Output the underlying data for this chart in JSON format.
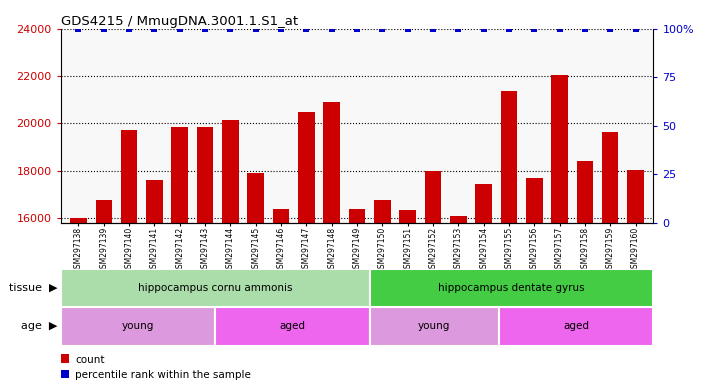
{
  "title": "GDS4215 / MmugDNA.3001.1.S1_at",
  "samples": [
    "GSM297138",
    "GSM297139",
    "GSM297140",
    "GSM297141",
    "GSM297142",
    "GSM297143",
    "GSM297144",
    "GSM297145",
    "GSM297146",
    "GSM297147",
    "GSM297148",
    "GSM297149",
    "GSM297150",
    "GSM297151",
    "GSM297152",
    "GSM297153",
    "GSM297154",
    "GSM297155",
    "GSM297156",
    "GSM297157",
    "GSM297158",
    "GSM297159",
    "GSM297160"
  ],
  "counts": [
    16000,
    16750,
    19700,
    17600,
    19850,
    19850,
    20150,
    17900,
    16400,
    20500,
    20900,
    16400,
    16750,
    16350,
    18000,
    16100,
    17450,
    21350,
    17700,
    22050,
    18400,
    19650,
    18050
  ],
  "percentile": [
    100,
    100,
    100,
    100,
    100,
    100,
    100,
    100,
    100,
    100,
    100,
    100,
    100,
    100,
    100,
    100,
    100,
    100,
    100,
    100,
    100,
    100,
    100
  ],
  "bar_color": "#cc0000",
  "percentile_color": "#0000cc",
  "ylim_left": [
    15800,
    24000
  ],
  "ylim_right": [
    0,
    100
  ],
  "yticks_left": [
    16000,
    18000,
    20000,
    22000,
    24000
  ],
  "yticks_right": [
    0,
    25,
    50,
    75,
    100
  ],
  "ytick_labels_right": [
    "0",
    "25",
    "50",
    "75",
    "100%"
  ],
  "tissue_groups": [
    {
      "label": "hippocampus cornu ammonis",
      "start": 0,
      "end": 12,
      "color": "#aaddaa"
    },
    {
      "label": "hippocampus dentate gyrus",
      "start": 12,
      "end": 23,
      "color": "#44cc44"
    }
  ],
  "age_groups": [
    {
      "label": "young",
      "start": 0,
      "end": 6,
      "color": "#dd99dd"
    },
    {
      "label": "aged",
      "start": 6,
      "end": 12,
      "color": "#ee66ee"
    },
    {
      "label": "young",
      "start": 12,
      "end": 17,
      "color": "#dd99dd"
    },
    {
      "label": "aged",
      "start": 17,
      "end": 23,
      "color": "#ee66ee"
    }
  ],
  "legend_count_color": "#cc0000",
  "legend_pct_color": "#0000cc",
  "plot_bg": "#ffffff",
  "grid_color": "#555555",
  "xticklabel_bg": "#dddddd"
}
